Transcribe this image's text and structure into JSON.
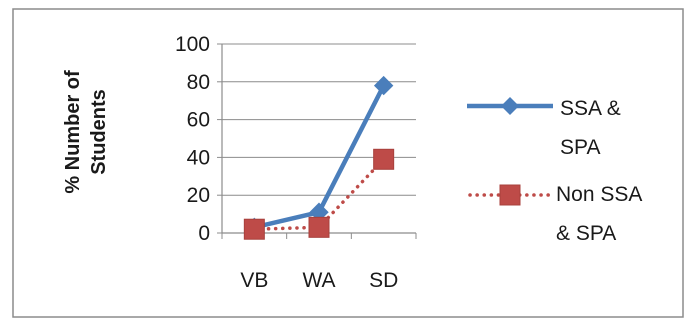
{
  "chart_data": {
    "type": "line",
    "title": "",
    "xlabel": "",
    "ylabel_lines": [
      "% Number of",
      "Students"
    ],
    "categories": [
      "VB",
      "WA",
      "SD"
    ],
    "ylim": [
      0,
      100
    ],
    "yticks": [
      0,
      20,
      40,
      60,
      80,
      100
    ],
    "grid": true,
    "legend_position": "right",
    "series": [
      {
        "name_lines": [
          "SSA &",
          "SPA"
        ],
        "values": [
          3,
          11,
          78
        ],
        "color": "#4a7ebb",
        "marker": "diamond",
        "line_style": "solid"
      },
      {
        "name_lines": [
          "Non SSA",
          "& SPA"
        ],
        "values": [
          2,
          3,
          39
        ],
        "color": "#be4b48",
        "marker": "square",
        "line_style": "dotted"
      }
    ]
  }
}
